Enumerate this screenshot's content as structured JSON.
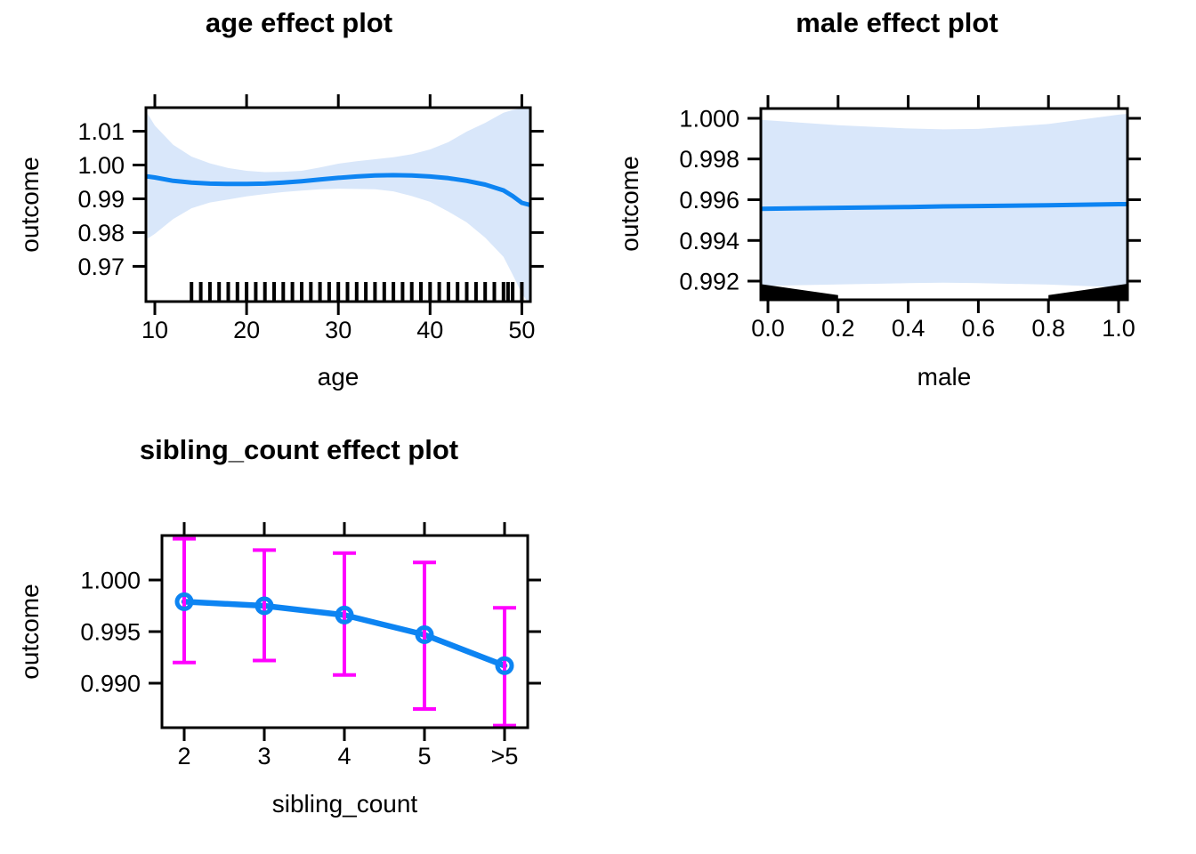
{
  "background": "#ffffff",
  "colors": {
    "fit_line": "#0d84f2",
    "confidence_band": "#d9e7fa",
    "error_bar": "#ff00ff",
    "rug": "#000000",
    "axis": "#000000"
  },
  "chart_data": [
    {
      "type": "line",
      "title": "age effect plot",
      "xlabel": "age",
      "ylabel": "outcome",
      "xlim": [
        9.2,
        51
      ],
      "ylim": [
        0.9595,
        1.017
      ],
      "grid": false,
      "x_tick_vals": [
        10,
        20,
        30,
        40,
        50
      ],
      "x_tick_labels": [
        "10",
        "20",
        "30",
        "40",
        "50"
      ],
      "y_tick_vals": [
        1.01,
        1.0,
        0.99,
        0.98,
        0.97
      ],
      "y_tick_labels": [
        "1.01",
        "1.00",
        "0.99",
        "0.98",
        "0.97"
      ],
      "line_color": "#0d84f2",
      "band_color": "#d9e7fa",
      "x": [
        9.2,
        10,
        12,
        14,
        16,
        18,
        20,
        22,
        24,
        26,
        28,
        30,
        32,
        34,
        36,
        38,
        40,
        42,
        44,
        46,
        48,
        49,
        50,
        51
      ],
      "fit": [
        0.9966,
        0.9963,
        0.9953,
        0.9948,
        0.9945,
        0.9944,
        0.9944,
        0.9945,
        0.9948,
        0.9952,
        0.9957,
        0.9962,
        0.9966,
        0.9969,
        0.997,
        0.9969,
        0.9966,
        0.9961,
        0.9953,
        0.9942,
        0.9925,
        0.9908,
        0.9888,
        0.9881
      ],
      "band_upper": [
        1.0152,
        1.0117,
        1.006,
        1.0025,
        1.0005,
        0.9991,
        0.9983,
        0.9979,
        0.998,
        0.9983,
        0.9993,
        1.0004,
        1.0011,
        1.0017,
        1.0023,
        1.0032,
        1.0046,
        1.0068,
        1.0099,
        1.0125,
        1.0155,
        1.0163,
        1.0168,
        1.0172
      ],
      "band_lower": [
        0.9782,
        0.9796,
        0.984,
        0.9872,
        0.9889,
        0.9898,
        0.9907,
        0.9914,
        0.992,
        0.9924,
        0.9928,
        0.993,
        0.9929,
        0.9928,
        0.9922,
        0.9908,
        0.9891,
        0.9862,
        0.983,
        0.9785,
        0.9728,
        0.9675,
        0.962,
        0.958
      ],
      "rug_x": [
        14,
        15,
        16,
        17,
        18,
        19,
        20,
        21,
        22,
        23,
        24,
        25,
        26,
        27,
        28,
        29,
        30,
        31,
        32,
        33,
        34,
        35,
        36,
        37,
        38,
        39,
        40,
        41,
        42,
        43,
        44,
        45,
        46,
        47,
        48,
        48.5,
        49,
        50
      ]
    },
    {
      "type": "line",
      "title": "male effect plot",
      "xlabel": "male",
      "ylabel": "outcome",
      "xlim": [
        -0.02,
        1.025
      ],
      "ylim": [
        0.9911,
        1.0005
      ],
      "grid": false,
      "x_tick_vals": [
        0.0,
        0.2,
        0.4,
        0.6,
        0.8,
        1.0
      ],
      "x_tick_labels": [
        "0.0",
        "0.2",
        "0.4",
        "0.6",
        "0.8",
        "1.0"
      ],
      "y_tick_vals": [
        1.0,
        0.998,
        0.996,
        0.994,
        0.992
      ],
      "y_tick_labels": [
        "1.000",
        "0.998",
        "0.996",
        "0.994",
        "0.992"
      ],
      "line_color": "#0d84f2",
      "band_color": "#d9e7fa",
      "x": [
        -0.02,
        0,
        0.2,
        0.4,
        0.5,
        0.6,
        0.8,
        1.0,
        1.025
      ],
      "fit": [
        0.99555,
        0.99556,
        0.9956,
        0.99564,
        0.99567,
        0.99569,
        0.99573,
        0.99578,
        0.99578
      ],
      "band_upper": [
        0.99992,
        0.9999,
        0.99966,
        0.9995,
        0.99946,
        0.99948,
        0.99972,
        1.00018,
        1.00022
      ],
      "band_lower": [
        0.99176,
        0.99177,
        0.99184,
        0.9919,
        0.99192,
        0.9919,
        0.99183,
        0.9917,
        0.99168
      ],
      "rug_polygons": [
        [
          [
            -0.0203,
            0.99185
          ],
          [
            0.2,
            0.99131
          ],
          [
            0.2,
            0.99
          ],
          [
            -0.0203,
            0.99
          ]
        ],
        [
          [
            0.8,
            0.99131
          ],
          [
            1.0254,
            0.99187
          ],
          [
            1.0254,
            0.99
          ],
          [
            0.8,
            0.99
          ]
        ]
      ]
    },
    {
      "type": "line-errorbar",
      "title": "sibling_count effect plot",
      "xlabel": "sibling_count",
      "ylabel": "outcome",
      "categories": [
        "2",
        "3",
        "4",
        "5",
        ">5"
      ],
      "ylim": [
        0.9857,
        1.0043
      ],
      "grid": false,
      "x_tick_vals": [
        0,
        1,
        2,
        3,
        4
      ],
      "x_tick_labels": [
        "2",
        "3",
        "4",
        "5",
        ">5"
      ],
      "y_tick_vals": [
        1.0,
        0.995,
        0.99
      ],
      "y_tick_labels": [
        "1.000",
        "0.995",
        "0.990"
      ],
      "line_color": "#0d84f2",
      "errorbar_color": "#ff00ff",
      "fit": [
        0.9979,
        0.9975,
        0.9966,
        0.9947,
        0.9917
      ],
      "error_upper": [
        1.004,
        1.0029,
        1.0026,
        1.0017,
        0.9973
      ],
      "error_lower": [
        0.992,
        0.9922,
        0.9908,
        0.9875,
        0.9859
      ]
    }
  ]
}
